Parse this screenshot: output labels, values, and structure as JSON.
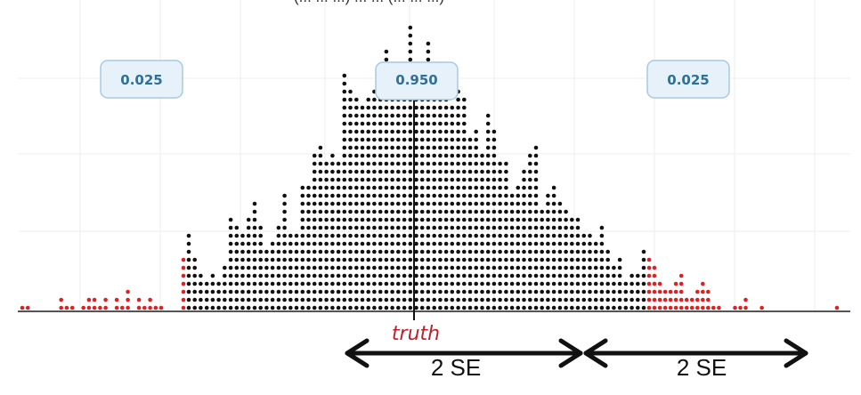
{
  "chart_data": {
    "type": "scatter",
    "subtype": "dot-plot-histogram",
    "title_fragment": "(... ... ...) ... ... (... ... ...)",
    "grid": true,
    "colors": {
      "center": "#111111",
      "tails": "#e02020",
      "chip_text": "#2f6f98",
      "truth_label": "#c0202a"
    },
    "tail_counts": [
      1,
      1,
      0,
      0,
      0,
      0,
      0,
      2,
      1,
      1,
      0,
      1,
      2,
      2,
      1,
      2,
      0,
      2,
      1,
      3,
      0,
      2,
      1,
      2,
      1,
      1,
      0,
      0,
      0,
      7
    ],
    "center_counts": [
      10,
      7,
      5,
      4,
      5,
      4,
      6,
      12,
      11,
      10,
      12,
      14,
      11,
      8,
      9,
      11,
      15,
      10,
      10,
      16,
      16,
      20,
      21,
      19,
      20,
      19,
      30,
      28,
      27,
      26,
      27,
      28,
      30,
      33,
      27,
      27,
      31,
      36,
      28,
      30,
      34,
      29,
      27,
      31,
      26,
      28,
      27,
      22,
      23,
      20,
      25,
      23,
      19,
      19,
      15,
      16,
      18,
      20,
      21,
      13,
      15,
      16,
      14,
      13,
      12,
      12,
      10,
      10,
      9,
      11,
      8,
      6,
      7,
      4,
      5,
      5,
      8
    ],
    "right_tail_counts": [
      7,
      6,
      4,
      3,
      3,
      4,
      5,
      2,
      2,
      3,
      4,
      3,
      1,
      1,
      0,
      0,
      1,
      1,
      2,
      0,
      0,
      1,
      0,
      0,
      0,
      0,
      0,
      0,
      0,
      0,
      0,
      0,
      0,
      0,
      0,
      1
    ],
    "proportion_labels": [
      "0.025",
      "0.950",
      "0.025"
    ],
    "truth_label": "truth",
    "se_labels": [
      "2 SE",
      "2 SE"
    ]
  },
  "chips": {
    "left": "0.025",
    "center": "0.950",
    "right": "0.025"
  },
  "annotations": {
    "truth": "truth",
    "se_left": "2 SE",
    "se_right": "2 SE"
  },
  "header_fragment": "(... ... ...) ... ... (... ... ...)"
}
